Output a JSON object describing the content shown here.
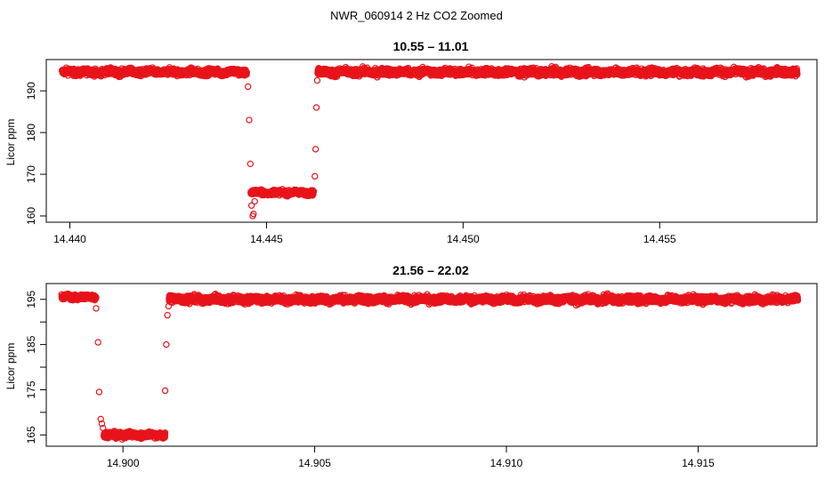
{
  "figure": {
    "title": "NWR_060914  2 Hz CO2 Zoomed"
  },
  "colors": {
    "point": "#e8141b",
    "axis": "#000000",
    "background": "#ffffff"
  },
  "chart_data": [
    {
      "type": "scatter",
      "title": "10.55 – 11.01",
      "xlabel": "",
      "ylabel": "Licor ppm",
      "xlim": [
        14.4394,
        14.459
      ],
      "ylim": [
        158.5,
        197.5
      ],
      "xticks": [
        14.44,
        14.445,
        14.45,
        14.455
      ],
      "xtick_labels": [
        "14.440",
        "14.445",
        "14.450",
        "14.455"
      ],
      "yticks": [
        160,
        170,
        180,
        190
      ],
      "ytick_labels": [
        "160",
        "170",
        "180",
        "190"
      ],
      "grid": false,
      "marker": "open-circle",
      "segments": [
        {
          "description": "baseline",
          "x_start": 14.4398,
          "x_end": 14.4445,
          "y_center": 194.5,
          "y_spread": 1.3
        },
        {
          "description": "low plateau",
          "x_start": 14.4446,
          "x_end": 14.4462,
          "y_center": 165.6,
          "y_spread": 1.0
        },
        {
          "description": "baseline",
          "x_start": 14.4463,
          "x_end": 14.4585,
          "y_center": 194.5,
          "y_spread": 1.4
        }
      ],
      "points": [
        {
          "x": 14.44453,
          "y": 191.0
        },
        {
          "x": 14.44456,
          "y": 183.0
        },
        {
          "x": 14.44459,
          "y": 172.5
        },
        {
          "x": 14.44462,
          "y": 162.5
        },
        {
          "x": 14.44465,
          "y": 160.0
        },
        {
          "x": 14.44467,
          "y": 160.5
        },
        {
          "x": 14.4447,
          "y": 163.5
        },
        {
          "x": 14.44623,
          "y": 169.5
        },
        {
          "x": 14.44625,
          "y": 176.0
        },
        {
          "x": 14.44627,
          "y": 186.0
        },
        {
          "x": 14.44629,
          "y": 192.5
        }
      ]
    },
    {
      "type": "scatter",
      "title": "21.56 – 22.02",
      "xlabel": "",
      "ylabel": "Licor ppm",
      "xlim": [
        14.898,
        14.9181
      ],
      "ylim": [
        162.5,
        198.5
      ],
      "xticks": [
        14.9,
        14.905,
        14.91,
        14.915
      ],
      "xtick_labels": [
        "14.900",
        "14.905",
        "14.910",
        "14.915"
      ],
      "yticks": [
        165,
        170,
        175,
        180,
        185,
        190,
        195
      ],
      "ytick_labels": [
        "165",
        "",
        "175",
        "",
        "185",
        "",
        "195"
      ],
      "grid": false,
      "marker": "open-circle",
      "segments": [
        {
          "description": "baseline",
          "x_start": 14.8984,
          "x_end": 14.8993,
          "y_center": 195.5,
          "y_spread": 1.0
        },
        {
          "description": "low plateau",
          "x_start": 14.8995,
          "x_end": 14.9011,
          "y_center": 165.0,
          "y_spread": 1.1
        },
        {
          "description": "baseline",
          "x_start": 14.9012,
          "x_end": 14.9176,
          "y_center": 195.0,
          "y_spread": 1.3
        }
      ],
      "points": [
        {
          "x": 14.8993,
          "y": 193.0
        },
        {
          "x": 14.89935,
          "y": 185.5
        },
        {
          "x": 14.89938,
          "y": 174.5
        },
        {
          "x": 14.89942,
          "y": 168.5
        },
        {
          "x": 14.89945,
          "y": 167.5
        },
        {
          "x": 14.89948,
          "y": 166.5
        },
        {
          "x": 14.9011,
          "y": 174.8
        },
        {
          "x": 14.90113,
          "y": 185.0
        },
        {
          "x": 14.90116,
          "y": 191.5
        },
        {
          "x": 14.90119,
          "y": 193.5
        }
      ]
    }
  ]
}
